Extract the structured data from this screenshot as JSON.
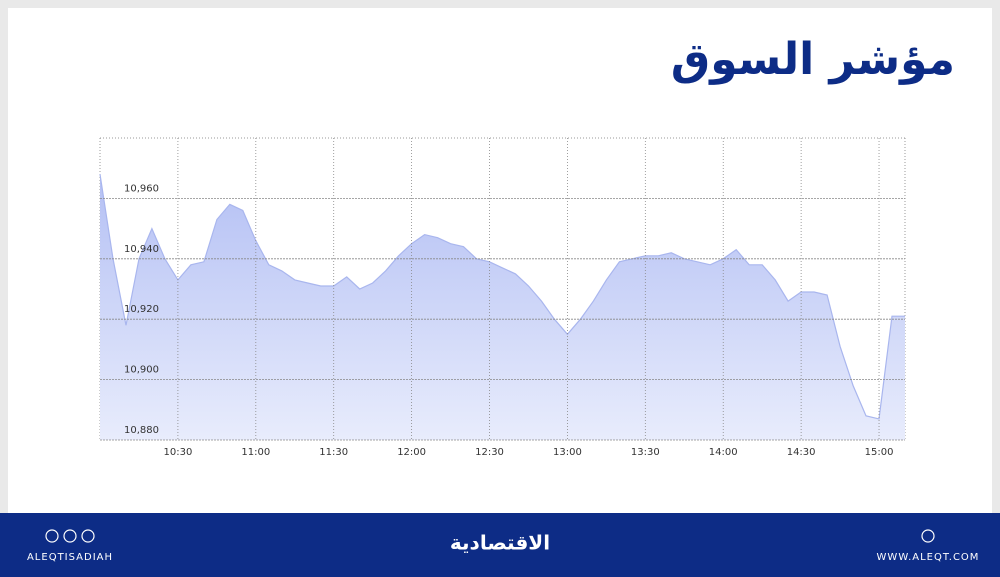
{
  "chart_data": {
    "type": "area",
    "title": "مؤشر السوق",
    "x": [
      "10:00",
      "10:05",
      "10:10",
      "10:15",
      "10:20",
      "10:25",
      "10:30",
      "10:35",
      "10:40",
      "10:45",
      "10:50",
      "10:55",
      "11:00",
      "11:05",
      "11:10",
      "11:15",
      "11:20",
      "11:25",
      "11:30",
      "11:35",
      "11:40",
      "11:45",
      "11:50",
      "11:55",
      "12:00",
      "12:05",
      "12:10",
      "12:15",
      "12:20",
      "12:25",
      "12:30",
      "12:35",
      "12:40",
      "12:45",
      "12:50",
      "12:55",
      "13:00",
      "13:05",
      "13:10",
      "13:15",
      "13:20",
      "13:25",
      "13:30",
      "13:35",
      "13:40",
      "13:45",
      "13:50",
      "13:55",
      "14:00",
      "14:05",
      "14:10",
      "14:15",
      "14:20",
      "14:25",
      "14:30",
      "14:35",
      "14:40",
      "14:45",
      "14:50",
      "14:55",
      "15:00",
      "15:05",
      "15:10"
    ],
    "values": [
      10968,
      10940,
      10918,
      10940,
      10950,
      10940,
      10933,
      10938,
      10939,
      10953,
      10958,
      10956,
      10946,
      10938,
      10936,
      10933,
      10932,
      10931,
      10931,
      10934,
      10930,
      10932,
      10936,
      10941,
      10945,
      10948,
      10947,
      10945,
      10944,
      10940,
      10939,
      10937,
      10935,
      10931,
      10926,
      10920,
      10915,
      10920,
      10926,
      10933,
      10939,
      10940,
      10941,
      10941,
      10942,
      10940,
      10939,
      10938,
      10940,
      10943,
      10938,
      10938,
      10933,
      10926,
      10929,
      10929,
      10928,
      10911,
      10898,
      10888,
      10887,
      10921,
      10921
    ],
    "color": "#a9b6ee",
    "xlim": [
      "10:00",
      "15:10"
    ],
    "xticks": [
      "10:30",
      "11:00",
      "11:30",
      "12:00",
      "12:30",
      "13:00",
      "13:30",
      "14:00",
      "14:30",
      "15:00"
    ],
    "ylim": [
      10880,
      10980
    ],
    "yticks": [
      {
        "value": 10880,
        "label": "10,880"
      },
      {
        "value": 10900,
        "label": "10,900"
      },
      {
        "value": 10920,
        "label": "10,920"
      },
      {
        "value": 10940,
        "label": "10,940"
      },
      {
        "value": 10960,
        "label": "10,960"
      }
    ],
    "grid": true
  },
  "footer": {
    "handle": "ALEQTISADIAH",
    "brand": "الاقتصادية",
    "website": "WWW.ALEQT.COM"
  }
}
